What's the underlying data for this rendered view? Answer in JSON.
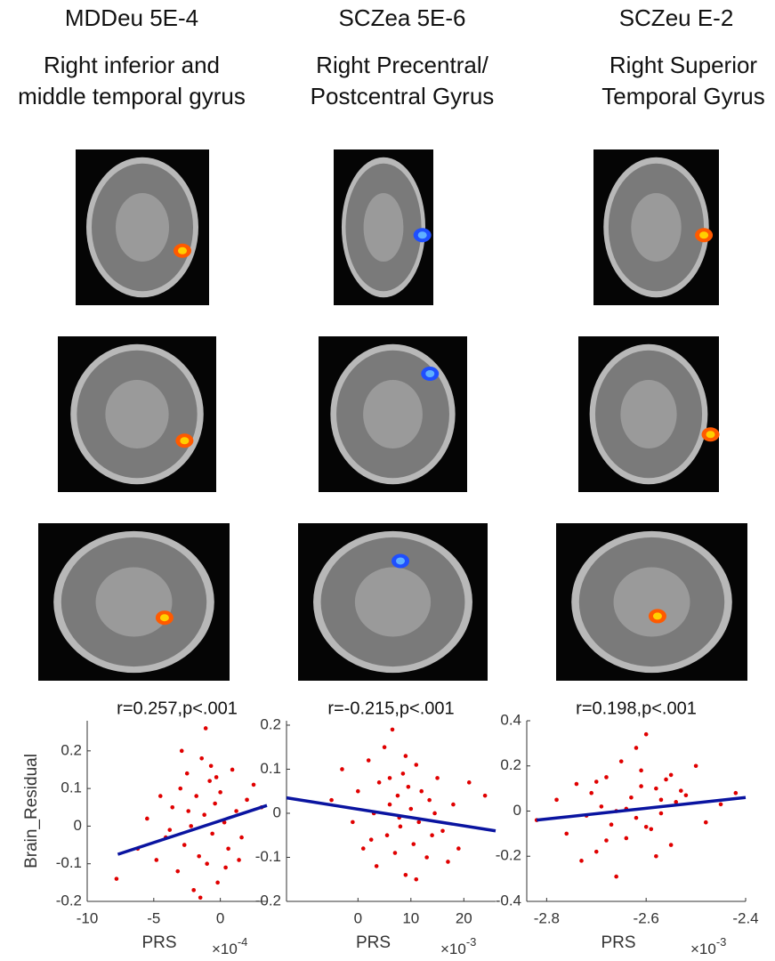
{
  "chart_data": [
    {
      "type": "scatter",
      "column_title": "MDDeu 5E-4",
      "region": [
        "Right inferior and",
        "middle temporal gyrus"
      ],
      "title": "r=0.257,p<.001",
      "x_label": "PRS",
      "y_label": "Brain_Residual",
      "x_scale_label": {
        "base": "×10",
        "exponent": "-4"
      },
      "xlim": [
        -10,
        3.5
      ],
      "ylim": [
        -0.2,
        0.28
      ],
      "xticks": [
        -10,
        -5,
        0
      ],
      "yticks": [
        -0.2,
        -0.1,
        0,
        0.1,
        0.2
      ],
      "color": "#e00000",
      "x": [
        -7.8,
        -6.2,
        -5.5,
        -4.8,
        -4.1,
        -3.6,
        -3.2,
        -3.0,
        -2.7,
        -2.5,
        -2.2,
        -2.0,
        -1.8,
        -1.6,
        -1.4,
        -1.2,
        -1.0,
        -0.8,
        -0.6,
        -0.4,
        -0.2,
        0.0,
        0.3,
        0.6,
        0.9,
        1.2,
        1.6,
        2.0,
        2.5,
        3.1,
        -2.9,
        -1.5,
        -0.7,
        -3.8,
        0.4,
        -1.1,
        -2.4,
        1.4,
        -0.3,
        -4.5
      ],
      "values": [
        -0.14,
        -0.06,
        0.02,
        -0.09,
        -0.03,
        0.05,
        -0.12,
        0.1,
        -0.05,
        0.14,
        0.0,
        -0.17,
        0.08,
        -0.08,
        0.18,
        0.03,
        -0.1,
        0.12,
        -0.02,
        0.06,
        -0.15,
        0.09,
        0.01,
        -0.06,
        0.15,
        0.04,
        -0.03,
        0.07,
        0.11,
        0.05,
        0.2,
        -0.19,
        0.16,
        -0.01,
        -0.11,
        0.26,
        0.04,
        -0.09,
        0.13,
        0.08
      ],
      "fit": {
        "x": [
          -7.7,
          3.5
        ],
        "values": [
          -0.075,
          0.055
        ],
        "color": "#0a14a0"
      }
    },
    {
      "type": "scatter",
      "column_title": "SCZea 5E-6",
      "region": [
        "Right Precentral/",
        "Postcentral Gyrus"
      ],
      "title": "r=-0.215,p<.001",
      "x_label": "PRS",
      "x_scale_label": {
        "base": "×10",
        "exponent": "-3"
      },
      "xlim": [
        -13.5,
        26
      ],
      "ylim": [
        -0.2,
        0.21
      ],
      "xticks": [
        0,
        10,
        20
      ],
      "yticks": [
        -0.2,
        -0.1,
        0,
        0.1,
        0.2
      ],
      "color": "#e00000",
      "x": [
        -5,
        -3,
        -1,
        0,
        1,
        2,
        3,
        3.5,
        4,
        5,
        5.5,
        6,
        6.5,
        7,
        7.5,
        8,
        8.5,
        9,
        9.5,
        10,
        10.5,
        11,
        11.5,
        12,
        13,
        13.5,
        14,
        15,
        16,
        17,
        18,
        19,
        21,
        24,
        2.5,
        9,
        11,
        6,
        14.5,
        7.8
      ],
      "values": [
        0.03,
        0.1,
        -0.02,
        0.05,
        -0.08,
        0.12,
        0.0,
        -0.12,
        0.07,
        0.15,
        -0.05,
        0.02,
        0.19,
        -0.09,
        0.04,
        -0.03,
        0.09,
        -0.14,
        0.06,
        0.01,
        -0.07,
        0.11,
        -0.02,
        0.05,
        -0.1,
        0.03,
        -0.05,
        0.08,
        -0.04,
        -0.11,
        0.02,
        -0.08,
        0.07,
        0.04,
        -0.06,
        0.13,
        -0.15,
        0.08,
        0.0,
        -0.01
      ],
      "fit": {
        "x": [
          -13.5,
          26
        ],
        "values": [
          0.035,
          -0.04
        ],
        "color": "#0a14a0"
      }
    },
    {
      "type": "scatter",
      "column_title": "SCZeu E-2",
      "region": [
        "Right Superior",
        "Temporal Gyrus"
      ],
      "title": "r=0.198,p<.001",
      "x_label": "PRS",
      "x_scale_label": {
        "base": "×10",
        "exponent": "-3"
      },
      "xlim": [
        -2.84,
        -2.4
      ],
      "ylim": [
        -0.4,
        0.4
      ],
      "xticks": [
        -2.8,
        -2.6,
        -2.4
      ],
      "yticks": [
        -0.4,
        -0.2,
        0,
        0.2,
        0.4
      ],
      "color": "#e00000",
      "x": [
        -2.82,
        -2.78,
        -2.76,
        -2.74,
        -2.72,
        -2.71,
        -2.7,
        -2.69,
        -2.68,
        -2.67,
        -2.66,
        -2.65,
        -2.64,
        -2.63,
        -2.62,
        -2.61,
        -2.6,
        -2.59,
        -2.58,
        -2.57,
        -2.56,
        -2.55,
        -2.54,
        -2.52,
        -2.5,
        -2.48,
        -2.45,
        -2.42,
        -2.66,
        -2.62,
        -2.58,
        -2.7,
        -2.6,
        -2.64,
        -2.55,
        -2.68,
        -2.53,
        -2.73,
        -2.61,
        -2.57
      ],
      "values": [
        -0.04,
        0.05,
        -0.1,
        0.12,
        -0.02,
        0.08,
        -0.18,
        0.02,
        0.15,
        -0.06,
        0.0,
        0.22,
        -0.12,
        0.06,
        -0.03,
        0.18,
        0.34,
        -0.08,
        0.1,
        -0.01,
        0.14,
        -0.15,
        0.04,
        0.07,
        0.2,
        -0.05,
        0.03,
        0.08,
        -0.29,
        0.28,
        -0.2,
        0.13,
        -0.07,
        0.01,
        0.16,
        -0.13,
        0.09,
        -0.22,
        0.11,
        0.05
      ],
      "fit": {
        "x": [
          -2.82,
          -2.4
        ],
        "values": [
          -0.04,
          0.06
        ],
        "color": "#0a14a0"
      }
    }
  ]
}
